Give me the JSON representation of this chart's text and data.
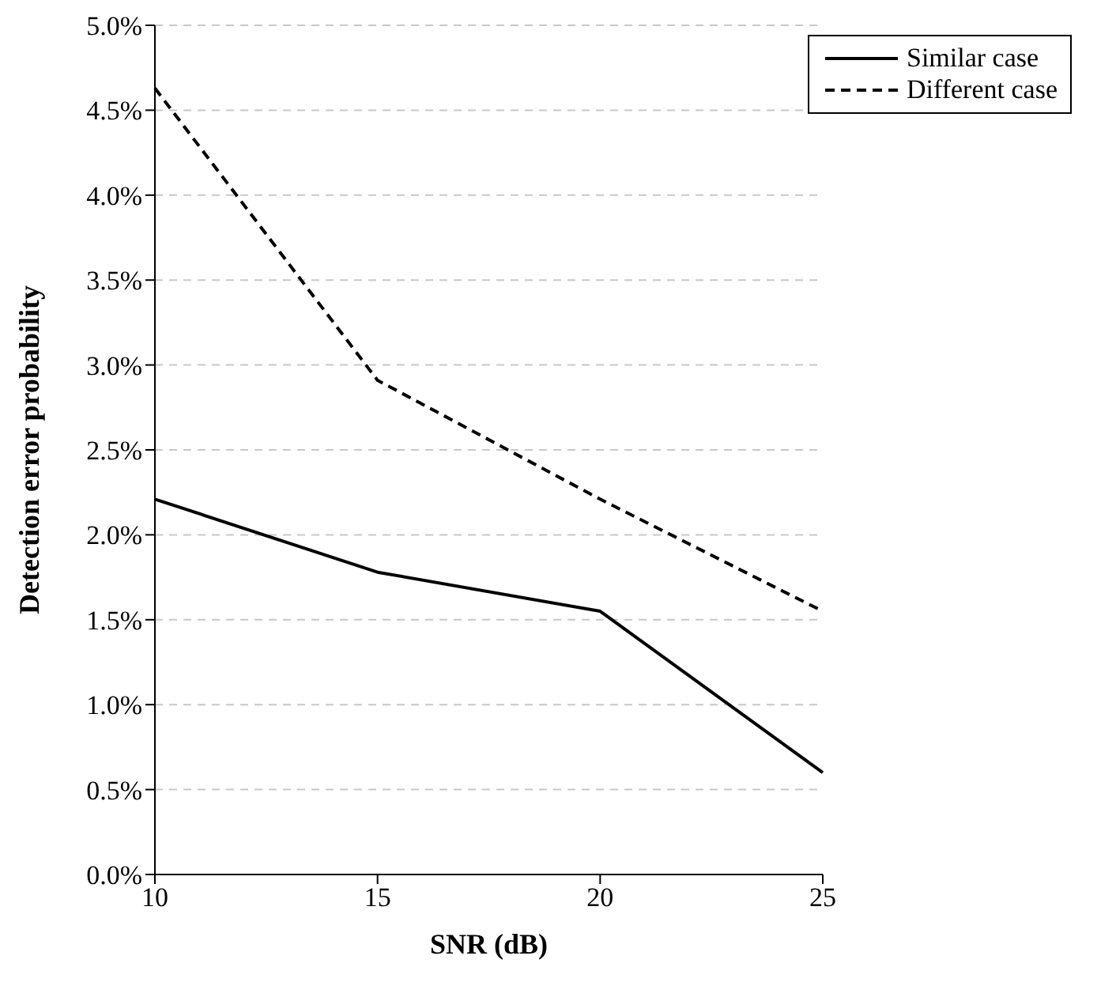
{
  "chart_data": {
    "type": "line",
    "xlabel": "SNR (dB)",
    "ylabel": "Detection error probability",
    "categories": [
      "10",
      "15",
      "20",
      "25"
    ],
    "ylim": [
      0,
      5
    ],
    "yticks": [
      {
        "value": 0,
        "label": "0.0%"
      },
      {
        "value": 0.5,
        "label": "0.5%"
      },
      {
        "value": 1,
        "label": "1.0%"
      },
      {
        "value": 1.5,
        "label": "1.5%"
      },
      {
        "value": 2,
        "label": "2.0%"
      },
      {
        "value": 2.5,
        "label": "2.5%"
      },
      {
        "value": 3,
        "label": "3.0%"
      },
      {
        "value": 3.5,
        "label": "3.5%"
      },
      {
        "value": 4,
        "label": "4.0%"
      },
      {
        "value": 4.5,
        "label": "4.5%"
      },
      {
        "value": 5,
        "label": "5.0%"
      }
    ],
    "grid": "y",
    "legend": "top right",
    "marker": "none",
    "series": [
      {
        "name": "Similar case",
        "color": "#000000",
        "line_style": "solid",
        "values": [
          2.21,
          1.78,
          1.55,
          0.6
        ]
      },
      {
        "name": "Different case",
        "color": "#000000",
        "line_style": "dashed",
        "values": [
          4.63,
          2.91,
          2.21,
          1.55
        ]
      }
    ]
  }
}
